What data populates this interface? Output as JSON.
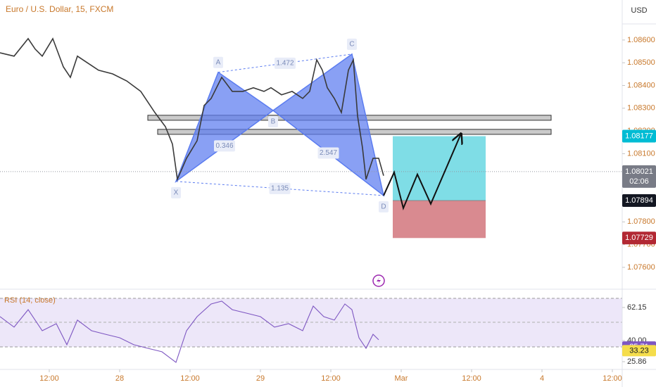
{
  "chart_data": [
    {
      "type": "line",
      "title": "Euro / U.S. Dollar, 15, FXCM",
      "currency": "USD",
      "color": "#3a3a3a",
      "x": [
        3.6,
        6.0,
        8.4,
        9.6,
        10.8,
        12.6,
        14.4,
        15.6,
        16.8,
        18.6,
        20.4,
        22.8,
        25.2,
        27.6,
        30.0,
        31.8,
        33.0,
        33.84,
        35.4,
        37.2,
        38.4,
        39.6,
        41.4,
        43.2,
        45.0,
        46.8,
        48.6,
        49.8,
        51.6,
        53.4,
        55.2,
        56.4,
        57.6,
        58.56,
        59.4,
        60.6,
        61.8,
        63.0,
        63.84,
        64.56,
        65.4,
        66.0,
        67.2,
        68.16,
        69.0
      ],
      "values": [
        1.08544,
        1.08529,
        1.08606,
        1.0856,
        1.08529,
        1.08606,
        1.08482,
        1.08436,
        1.08529,
        1.08498,
        1.08467,
        1.08451,
        1.0842,
        1.08374,
        1.08281,
        1.08219,
        1.08142,
        1.07987,
        1.0808,
        1.08157,
        1.08312,
        1.08343,
        1.08436,
        1.08374,
        1.08374,
        1.0839,
        1.08374,
        1.0839,
        1.08359,
        1.08374,
        1.08343,
        1.08374,
        1.08513,
        1.08467,
        1.0839,
        1.08343,
        1.08281,
        1.08467,
        1.08513,
        1.08266,
        1.08126,
        1.07987,
        1.0808,
        1.0808,
        1.08003
      ],
      "xlim": [
        3.6,
        109.68
      ],
      "xticks": [
        {
          "value": 12,
          "label": "12:00"
        },
        {
          "value": 24,
          "label": "28"
        },
        {
          "value": 36,
          "label": "12:00"
        },
        {
          "value": 48,
          "label": "29"
        },
        {
          "value": 60,
          "label": "12:00"
        },
        {
          "value": 72,
          "label": "Mar"
        },
        {
          "value": 84,
          "label": "12:00"
        },
        {
          "value": 96,
          "label": "4"
        },
        {
          "value": 108,
          "label": "12:00"
        }
      ],
      "ylim": [
        1.07507,
        1.08776
      ],
      "yticks": [
        {
          "value": 1.086,
          "label": "1.08600"
        },
        {
          "value": 1.085,
          "label": "1.08500"
        },
        {
          "value": 1.084,
          "label": "1.08400"
        },
        {
          "value": 1.083,
          "label": "1.08300"
        },
        {
          "value": 1.082,
          "label": "1.08200"
        },
        {
          "value": 1.081,
          "label": "1.08100"
        },
        {
          "value": 1.078,
          "label": "1.07800"
        },
        {
          "value": 1.077,
          "label": "1.07700"
        },
        {
          "value": 1.076,
          "label": "1.07600"
        }
      ],
      "pattern": {
        "color": "#5b7cf0",
        "points": [
          {
            "label": "X",
            "x": 33.6,
            "y": 1.07978
          },
          {
            "label": "A",
            "x": 40.8,
            "y": 1.08458
          },
          {
            "label": "B",
            "x": 50.16,
            "y": 1.0829
          },
          {
            "label": "C",
            "x": 63.6,
            "y": 1.08538
          },
          {
            "label": "D",
            "x": 69.0,
            "y": 1.07916
          }
        ],
        "ratios": [
          0.346,
          1.472,
          2.547,
          1.135
        ]
      },
      "zones": [
        {
          "low": 1.08247,
          "high": 1.08269,
          "from": 28.8,
          "to": 97.56
        },
        {
          "low": 1.08185,
          "high": 1.08207,
          "from": 30.48,
          "to": 97.56
        }
      ],
      "position": {
        "from": 70.56,
        "to": 86.4,
        "entry": {
          "value": 1.07894,
          "label": "1.07894"
        },
        "target": {
          "value": 1.08177,
          "label": "1.08177"
        },
        "stop": {
          "value": 1.07729,
          "label": "1.07729"
        },
        "profit_color": "#7fdde6",
        "loss_color": "#d98a90"
      },
      "projection": {
        "color": "#111111",
        "x": [
          69.0,
          70.8,
          72.36,
          74.76,
          77.04,
          82.2
        ],
        "y": [
          1.07916,
          1.08018,
          1.0786,
          1.08009,
          1.07879,
          1.08188
        ]
      },
      "last_price": {
        "value": 1.08021,
        "label": "1.08021",
        "countdown": "02:06"
      }
    },
    {
      "type": "line",
      "title": "RSI (14, close)",
      "color": "#7e57c2",
      "x": [
        3.6,
        6.0,
        8.4,
        10.8,
        13.2,
        15.0,
        16.8,
        19.2,
        21.6,
        24.0,
        26.4,
        28.8,
        31.2,
        33.6,
        35.4,
        37.2,
        39.6,
        41.4,
        43.2,
        45.6,
        48.0,
        50.4,
        52.8,
        55.2,
        57.0,
        58.8,
        60.6,
        62.4,
        63.6,
        64.8,
        66.0,
        67.2,
        68.16
      ],
      "values": [
        56.0,
        49.0,
        60.7,
        46.6,
        51.3,
        37.2,
        53.7,
        46.6,
        44.2,
        41.9,
        37.2,
        34.8,
        32.5,
        25.4,
        46.6,
        56.0,
        64.5,
        66.4,
        60.7,
        58.4,
        56.0,
        49.0,
        51.3,
        46.6,
        63.1,
        56.0,
        53.7,
        64.5,
        60.7,
        41.9,
        34.8,
        44.2,
        40.5
      ],
      "ylim": [
        20.68,
        73.93
      ],
      "yticks": [
        62.15,
        {
          "value": 40,
          "label": "40.00"
        },
        25.86
      ],
      "markers": [
        {
          "value": 35.71,
          "color": "#7e57c2"
        },
        {
          "value": 33.23,
          "color": "#f5dd4b"
        }
      ]
    }
  ]
}
